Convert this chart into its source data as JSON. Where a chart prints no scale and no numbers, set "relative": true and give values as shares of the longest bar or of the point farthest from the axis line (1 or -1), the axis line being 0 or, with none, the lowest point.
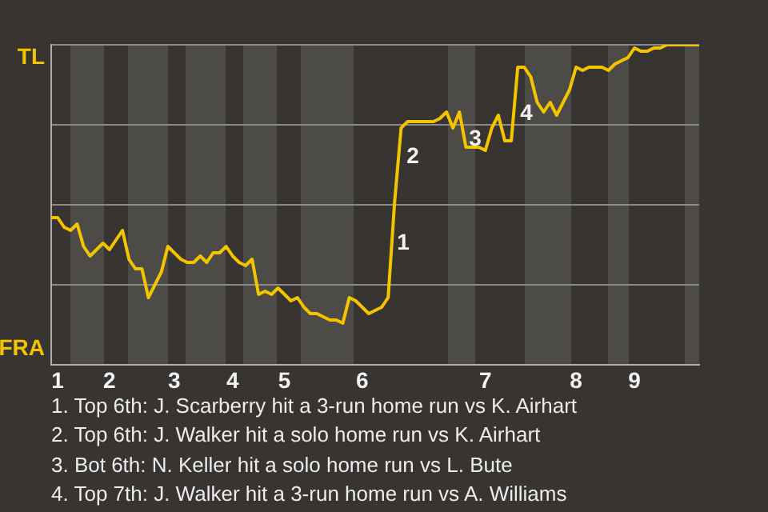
{
  "chart_data": {
    "type": "line",
    "categories": [
      null,
      "1",
      null,
      null,
      null,
      null,
      null,
      null,
      null,
      "2",
      null,
      null,
      null,
      null,
      null,
      null,
      null,
      null,
      null,
      "3",
      null,
      null,
      null,
      null,
      null,
      null,
      null,
      null,
      "4",
      null,
      null,
      null,
      null,
      null,
      null,
      null,
      "5",
      null,
      null,
      null,
      null,
      null,
      null,
      null,
      null,
      null,
      null,
      null,
      "6",
      null,
      null,
      null,
      null,
      null,
      null,
      null,
      null,
      null,
      null,
      null,
      null,
      null,
      null,
      null,
      null,
      null,
      null,
      "7",
      null,
      null,
      null,
      null,
      null,
      null,
      null,
      null,
      null,
      null,
      null,
      null,
      null,
      "8",
      null,
      null,
      null,
      null,
      null,
      null,
      null,
      null,
      "9",
      null,
      null,
      null,
      null,
      null,
      null,
      null,
      null,
      null,
      null
    ],
    "series": [
      {
        "color": "#f5c400",
        "values": [
          0.46,
          0.46,
          0.43,
          0.42,
          0.44,
          0.37,
          0.34,
          0.36,
          0.38,
          0.36,
          0.39,
          0.42,
          0.33,
          0.3,
          0.3,
          0.21,
          0.25,
          0.29,
          0.37,
          0.35,
          0.33,
          0.32,
          0.32,
          0.34,
          0.32,
          0.35,
          0.35,
          0.37,
          0.34,
          0.32,
          0.31,
          0.33,
          0.22,
          0.23,
          0.22,
          0.24,
          0.22,
          0.2,
          0.21,
          0.18,
          0.16,
          0.16,
          0.15,
          0.14,
          0.14,
          0.13,
          0.21,
          0.2,
          0.18,
          0.16,
          0.17,
          0.18,
          0.21,
          0.51,
          0.74,
          0.76,
          0.76,
          0.76,
          0.76,
          0.76,
          0.77,
          0.79,
          0.74,
          0.79,
          0.68,
          0.68,
          0.68,
          0.67,
          0.74,
          0.78,
          0.7,
          0.7,
          0.93,
          0.93,
          0.9,
          0.82,
          0.79,
          0.82,
          0.78,
          0.82,
          0.86,
          0.93,
          0.92,
          0.93,
          0.93,
          0.93,
          0.92,
          0.94,
          0.95,
          0.96,
          0.99,
          0.98,
          0.98,
          0.99,
          0.99,
          1.0,
          1.0,
          1.0,
          1.0,
          1.0,
          1.0
        ]
      }
    ],
    "relative": true,
    "grid": "y",
    "legend": false,
    "marker": "none",
    "line_style": "solid",
    "annotations": [
      "TL",
      "FRA",
      "1",
      "2",
      "3",
      "4",
      "1. Top 6th: J. Scarberry hit a 3-run home run vs K. Airhart",
      "2. Top 6th: J. Walker hit a solo home run vs K. Airhart",
      "3. Bot 6th: N. Keller hit a solo home run vs L. Bute",
      "4. Top 7th: J. Walker hit a 3-run home run vs A. Williams"
    ]
  }
}
